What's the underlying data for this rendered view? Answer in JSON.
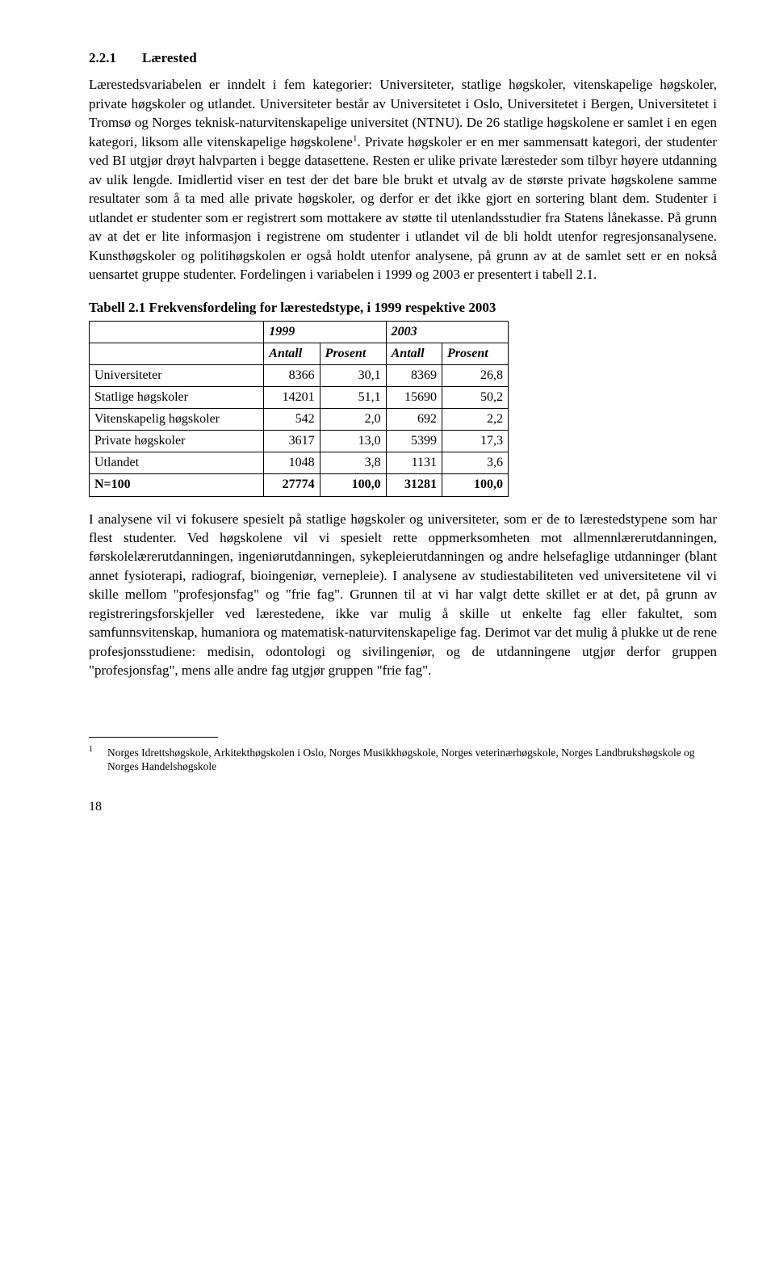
{
  "section": {
    "number": "2.2.1",
    "title": "Lærested"
  },
  "para1": "Lærestedsvariabelen er inndelt i fem kategorier: Universiteter, statlige høgskoler, vitenskapelige høgskoler, private høgskoler og utlandet. Universiteter består av Universitetet i Oslo, Universitetet i Bergen, Universitetet i Tromsø og Norges teknisk-naturvitenskapelige universitet (NTNU). De 26 statlige høgskolene er samlet i en egen kategori, liksom alle vitenskapelige høgskolene",
  "para1_after_sup": ". Private høgskoler er en mer sammensatt kategori, der studenter ved BI utgjør drøyt halvparten i begge datasettene. Resten er ulike private læresteder som tilbyr høyere utdanning av ulik lengde. Imidlertid viser en test der det bare ble brukt et utvalg av de største private høgskolene samme resultater som å ta med alle private høgskoler, og derfor er det ikke gjort en sortering blant dem. Studenter i utlandet er studenter som er registrert som mottakere av støtte til utenlandsstudier fra Statens lånekasse. På grunn av at det er lite informasjon i registrene om studenter i utlandet vil de bli holdt utenfor regresjonsanalysene. Kunsthøgskoler og politihøgskolen er også holdt utenfor analysene, på grunn av at de samlet sett er en nokså uensartet gruppe studenter. Fordelingen i variabelen i 1999 og 2003 er presentert i tabell 2.1.",
  "table": {
    "title": "Tabell 2.1 Frekvensfordeling for lærestedstype, i 1999 respektive 2003",
    "year1": "1999",
    "year2": "2003",
    "col_antall": "Antall",
    "col_prosent": "Prosent",
    "rows": [
      {
        "label": "Universiteter",
        "a1": "8366",
        "p1": "30,1",
        "a2": "8369",
        "p2": "26,8"
      },
      {
        "label": "Statlige høgskoler",
        "a1": "14201",
        "p1": "51,1",
        "a2": "15690",
        "p2": "50,2"
      },
      {
        "label": "Vitenskapelig høgskoler",
        "a1": "542",
        "p1": "2,0",
        "a2": "692",
        "p2": "2,2"
      },
      {
        "label": "Private høgskoler",
        "a1": "3617",
        "p1": "13,0",
        "a2": "5399",
        "p2": "17,3"
      },
      {
        "label": "Utlandet",
        "a1": "1048",
        "p1": "3,8",
        "a2": "1131",
        "p2": "3,6"
      },
      {
        "label": "N=100",
        "a1": "27774",
        "p1": "100,0",
        "a2": "31281",
        "p2": "100,0",
        "bold": true
      }
    ]
  },
  "para2": "I analysene vil vi fokusere spesielt på statlige høgskoler og universiteter, som er de to lærestedstypene som har flest studenter. Ved høgskolene vil vi spesielt rette oppmerksomheten mot allmennlærerutdanningen, førskolelærerutdanningen, ingeniørutdanningen, sykepleierutdanningen og andre helsefaglige utdanninger (blant annet fysioterapi, radiograf, bioingeniør, vernepleie). I analysene av studiestabiliteten ved universitetene vil vi skille mellom \"profesjonsfag\" og \"frie fag\". Grunnen til at vi har valgt dette skillet er at det, på grunn av registreringsforskjeller ved lærestedene, ikke var mulig å skille ut enkelte fag eller fakultet, som samfunnsvitenskap, humaniora og matematisk-naturvitenskapelige fag. Derimot var det mulig å plukke ut de rene profesjonsstudiene: medisin, odontologi og sivilingeniør, og de utdanningene utgjør derfor gruppen \"profesjonsfag\", mens alle andre fag utgjør gruppen \"frie fag\".",
  "footnote": {
    "num": "1",
    "text": "Norges Idrettshøgskole, Arkitekthøgskolen i Oslo, Norges Musikkhøgskole, Norges veterinærhøgskole, Norges Landbrukshøgskole og Norges Handelshøgskole"
  },
  "page_number": "18"
}
